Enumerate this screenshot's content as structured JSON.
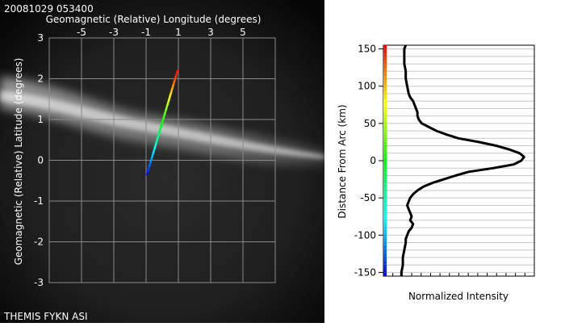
{
  "timestamp": "20081029 053400",
  "caption": "THEMIS FYKN ASI",
  "colors": {
    "background": "#000000",
    "grid": "#8a8a8a",
    "axis_text": "#ffffff",
    "plot_text": "#000000",
    "profile_line": "#000000"
  },
  "chart_data": [
    {
      "type": "image-map",
      "xlabel": "Geomagnetic (Relative) Longitude (degrees)",
      "ylabel": "Geomagnetic (Relative) Latitude (degrees)",
      "xlim": [
        -7,
        7
      ],
      "ylim": [
        -3,
        3
      ],
      "x_ticks": [
        -5,
        -3,
        -1,
        1,
        3,
        5
      ],
      "y_ticks": [
        3,
        2,
        1,
        0,
        -1,
        -2,
        -3
      ],
      "grid": true,
      "track": {
        "description": "rainbow-colored scan line across the arc",
        "x": [
          -0.95,
          0.95
        ],
        "y": [
          -0.35,
          2.2
        ],
        "colormap": "rainbow"
      }
    },
    {
      "type": "line",
      "xlabel": "Normalized Intensity",
      "ylabel": "Distance From Arc (km)",
      "ylim": [
        -155,
        155
      ],
      "y_ticks": [
        150,
        100,
        50,
        0,
        -50,
        -100,
        -150
      ],
      "grid": true,
      "colorbar": "rainbow",
      "series": [
        {
          "distance_km": [
            155,
            150,
            140,
            130,
            120,
            110,
            100,
            90,
            85,
            80,
            75,
            70,
            65,
            60,
            55,
            50,
            45,
            40,
            35,
            30,
            25,
            20,
            15,
            10,
            5,
            0,
            -5,
            -10,
            -15,
            -20,
            -25,
            -30,
            -35,
            -40,
            -45,
            -50,
            -55,
            -60,
            -65,
            -70,
            -75,
            -80,
            -85,
            -90,
            -95,
            -100,
            -105,
            -110,
            -120,
            -130,
            -140,
            -150,
            -155
          ],
          "intensity": [
            0.12,
            0.11,
            0.11,
            0.11,
            0.12,
            0.12,
            0.13,
            0.14,
            0.15,
            0.17,
            0.18,
            0.19,
            0.2,
            0.2,
            0.21,
            0.23,
            0.28,
            0.33,
            0.4,
            0.48,
            0.62,
            0.74,
            0.83,
            0.9,
            0.93,
            0.91,
            0.86,
            0.72,
            0.55,
            0.46,
            0.38,
            0.3,
            0.24,
            0.2,
            0.17,
            0.15,
            0.14,
            0.13,
            0.14,
            0.15,
            0.16,
            0.15,
            0.17,
            0.16,
            0.14,
            0.13,
            0.12,
            0.12,
            0.11,
            0.1,
            0.1,
            0.09,
            0.09
          ]
        }
      ]
    }
  ]
}
